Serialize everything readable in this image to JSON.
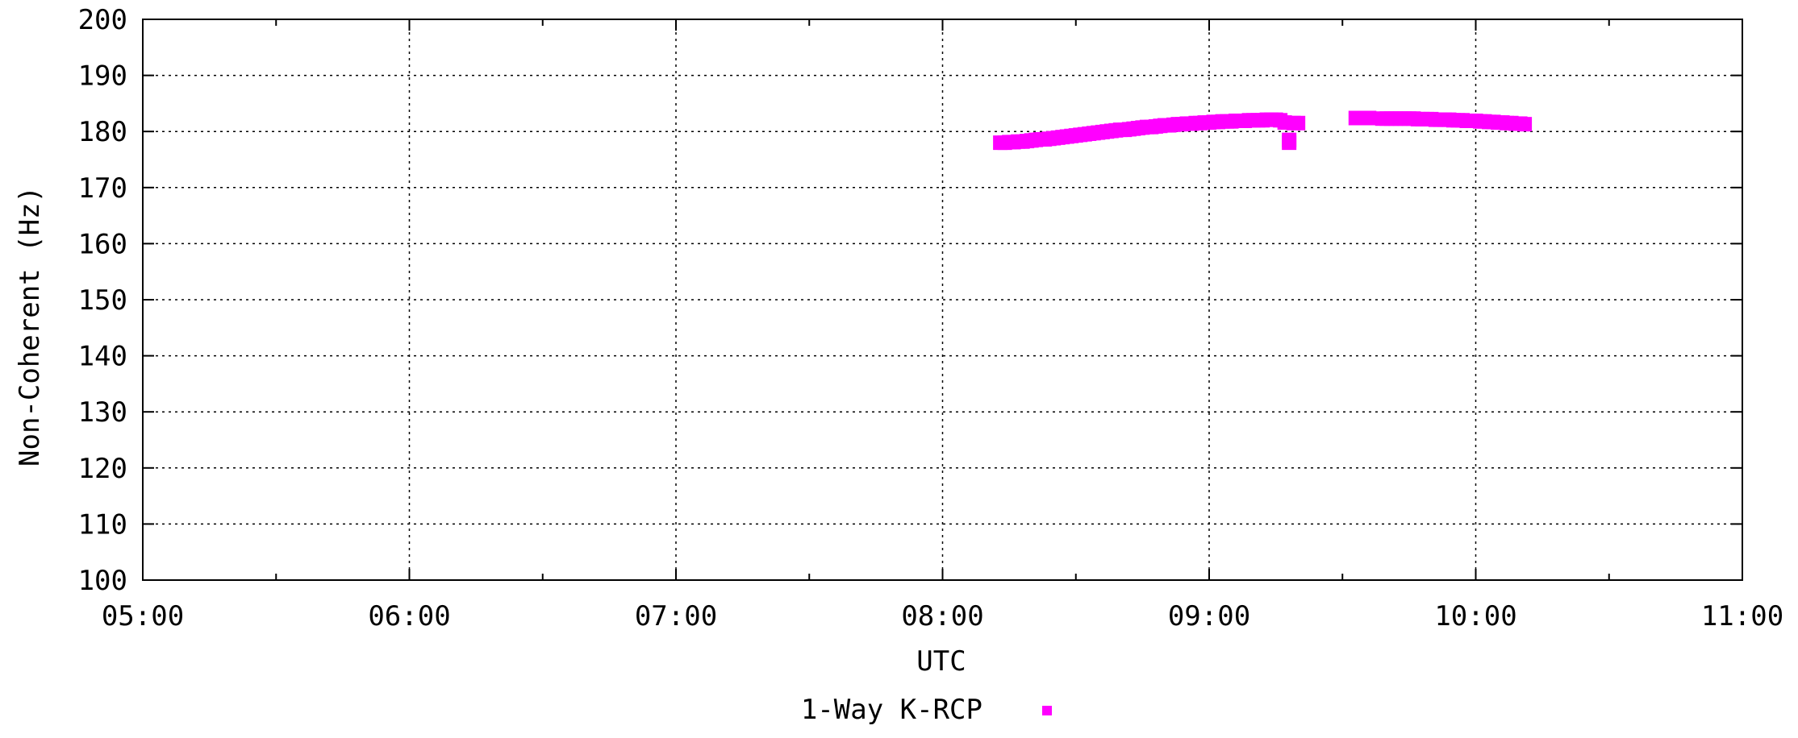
{
  "chart_data": {
    "type": "scatter",
    "title": "",
    "xlabel": "UTC",
    "ylabel": "Non-Coherent (Hz)",
    "xlim": [
      "05:00",
      "11:00"
    ],
    "ylim": [
      100,
      200
    ],
    "x_ticks": [
      "05:00",
      "06:00",
      "07:00",
      "08:00",
      "09:00",
      "10:00",
      "11:00"
    ],
    "y_ticks": [
      100,
      110,
      120,
      130,
      140,
      150,
      160,
      170,
      180,
      190,
      200
    ],
    "grid": true,
    "legend_position": "bottom-center",
    "series": [
      {
        "name": "1-Way K-RCP",
        "color": "#ff00ff",
        "marker": "square",
        "points": [
          [
            "08:13",
            178.0
          ],
          [
            "08:14",
            178.0
          ],
          [
            "08:15",
            178.1
          ],
          [
            "08:16",
            178.1
          ],
          [
            "08:17",
            178.2
          ],
          [
            "08:18",
            178.2
          ],
          [
            "08:19",
            178.3
          ],
          [
            "08:20",
            178.4
          ],
          [
            "08:21",
            178.5
          ],
          [
            "08:22",
            178.6
          ],
          [
            "08:23",
            178.6
          ],
          [
            "08:24",
            178.7
          ],
          [
            "08:25",
            178.8
          ],
          [
            "08:26",
            178.9
          ],
          [
            "08:27",
            179.0
          ],
          [
            "08:28",
            179.1
          ],
          [
            "08:29",
            179.2
          ],
          [
            "08:30",
            179.3
          ],
          [
            "08:31",
            179.4
          ],
          [
            "08:32",
            179.5
          ],
          [
            "08:33",
            179.6
          ],
          [
            "08:34",
            179.7
          ],
          [
            "08:35",
            179.8
          ],
          [
            "08:36",
            179.9
          ],
          [
            "08:37",
            180.0
          ],
          [
            "08:38",
            180.1
          ],
          [
            "08:39",
            180.2
          ],
          [
            "08:40",
            180.3
          ],
          [
            "08:41",
            180.3
          ],
          [
            "08:42",
            180.4
          ],
          [
            "08:43",
            180.5
          ],
          [
            "08:44",
            180.6
          ],
          [
            "08:45",
            180.7
          ],
          [
            "08:46",
            180.8
          ],
          [
            "08:47",
            180.8
          ],
          [
            "08:48",
            180.9
          ],
          [
            "08:49",
            181.0
          ],
          [
            "08:50",
            181.1
          ],
          [
            "08:51",
            181.1
          ],
          [
            "08:52",
            181.2
          ],
          [
            "08:53",
            181.3
          ],
          [
            "08:54",
            181.3
          ],
          [
            "08:55",
            181.4
          ],
          [
            "08:56",
            181.4
          ],
          [
            "08:57",
            181.5
          ],
          [
            "08:58",
            181.5
          ],
          [
            "08:59",
            181.6
          ],
          [
            "09:00",
            181.6
          ],
          [
            "09:01",
            181.7
          ],
          [
            "09:02",
            181.7
          ],
          [
            "09:03",
            181.8
          ],
          [
            "09:04",
            181.8
          ],
          [
            "09:05",
            181.8
          ],
          [
            "09:06",
            181.9
          ],
          [
            "09:07",
            181.9
          ],
          [
            "09:08",
            181.9
          ],
          [
            "09:09",
            182.0
          ],
          [
            "09:10",
            182.0
          ],
          [
            "09:11",
            182.0
          ],
          [
            "09:12",
            182.0
          ],
          [
            "09:13",
            182.1
          ],
          [
            "09:14",
            182.1
          ],
          [
            "09:15",
            182.1
          ],
          [
            "09:16",
            182.0
          ],
          [
            "09:17",
            181.6
          ],
          [
            "09:18",
            178.5
          ],
          [
            "09:18",
            178.0
          ],
          [
            "09:19",
            181.5
          ],
          [
            "09:20",
            181.5
          ],
          [
            "09:33",
            182.4
          ],
          [
            "09:34",
            182.4
          ],
          [
            "09:35",
            182.4
          ],
          [
            "09:36",
            182.4
          ],
          [
            "09:39",
            182.3
          ],
          [
            "09:40",
            182.3
          ],
          [
            "09:41",
            182.3
          ],
          [
            "09:42",
            182.3
          ],
          [
            "09:43",
            182.3
          ],
          [
            "09:44",
            182.3
          ],
          [
            "09:45",
            182.3
          ],
          [
            "09:46",
            182.3
          ],
          [
            "09:47",
            182.2
          ],
          [
            "09:48",
            182.2
          ],
          [
            "09:49",
            182.2
          ],
          [
            "09:50",
            182.2
          ],
          [
            "09:51",
            182.1
          ],
          [
            "09:52",
            182.1
          ],
          [
            "09:53",
            182.1
          ],
          [
            "09:54",
            182.1
          ],
          [
            "09:55",
            182.0
          ],
          [
            "09:56",
            182.0
          ],
          [
            "09:57",
            182.0
          ],
          [
            "09:58",
            181.9
          ],
          [
            "09:59",
            181.9
          ],
          [
            "10:00",
            181.9
          ],
          [
            "10:01",
            181.8
          ],
          [
            "10:02",
            181.8
          ],
          [
            "10:03",
            181.7
          ],
          [
            "10:04",
            181.7
          ],
          [
            "10:05",
            181.6
          ],
          [
            "10:06",
            181.6
          ],
          [
            "10:07",
            181.5
          ],
          [
            "10:08",
            181.5
          ],
          [
            "10:09",
            181.4
          ],
          [
            "10:10",
            181.4
          ],
          [
            "10:11",
            181.3
          ]
        ]
      }
    ]
  }
}
